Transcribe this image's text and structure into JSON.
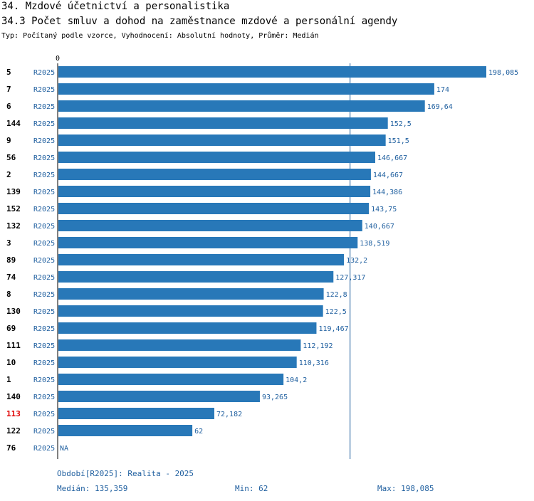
{
  "header": {
    "title": "34. Mzdové účetnictví a personalistika",
    "subtitle": "34.3 Počet smluv a dohod na zaměstnance mzdové a personální agendy",
    "type_line": "Typ: Počítaný podle vzorce, Vyhodnocení: Absolutní hodnoty, Průměr: Medián"
  },
  "chart_data": {
    "type": "bar",
    "orientation": "horizontal",
    "title": "34.3 Počet smluv a dohod na zaměstnance mzdové a personální agendy",
    "axis_zero_label": "0",
    "xlim": [
      0,
      198.085
    ],
    "median": 135.359,
    "colors": {
      "bar": "#2878b8",
      "label": "#1f5f9f",
      "highlight": "#e00000",
      "median_line": "#1f5f9f"
    },
    "rows": [
      {
        "id": "5",
        "period": "R2025",
        "value": 198.085,
        "label": "198,085",
        "highlight": false
      },
      {
        "id": "7",
        "period": "R2025",
        "value": 174,
        "label": "174",
        "highlight": false
      },
      {
        "id": "6",
        "period": "R2025",
        "value": 169.64,
        "label": "169,64",
        "highlight": false
      },
      {
        "id": "144",
        "period": "R2025",
        "value": 152.5,
        "label": "152,5",
        "highlight": false
      },
      {
        "id": "9",
        "period": "R2025",
        "value": 151.5,
        "label": "151,5",
        "highlight": false
      },
      {
        "id": "56",
        "period": "R2025",
        "value": 146.667,
        "label": "146,667",
        "highlight": false
      },
      {
        "id": "2",
        "period": "R2025",
        "value": 144.667,
        "label": "144,667",
        "highlight": false
      },
      {
        "id": "139",
        "period": "R2025",
        "value": 144.386,
        "label": "144,386",
        "highlight": false
      },
      {
        "id": "152",
        "period": "R2025",
        "value": 143.75,
        "label": "143,75",
        "highlight": false
      },
      {
        "id": "132",
        "period": "R2025",
        "value": 140.667,
        "label": "140,667",
        "highlight": false
      },
      {
        "id": "3",
        "period": "R2025",
        "value": 138.519,
        "label": "138,519",
        "highlight": false
      },
      {
        "id": "89",
        "period": "R2025",
        "value": 132.2,
        "label": "132,2",
        "highlight": false
      },
      {
        "id": "74",
        "period": "R2025",
        "value": 127.317,
        "label": "127,317",
        "highlight": false
      },
      {
        "id": "8",
        "period": "R2025",
        "value": 122.8,
        "label": "122,8",
        "highlight": false
      },
      {
        "id": "130",
        "period": "R2025",
        "value": 122.5,
        "label": "122,5",
        "highlight": false
      },
      {
        "id": "69",
        "period": "R2025",
        "value": 119.467,
        "label": "119,467",
        "highlight": false
      },
      {
        "id": "111",
        "period": "R2025",
        "value": 112.192,
        "label": "112,192",
        "highlight": false
      },
      {
        "id": "10",
        "period": "R2025",
        "value": 110.316,
        "label": "110,316",
        "highlight": false
      },
      {
        "id": "1",
        "period": "R2025",
        "value": 104.2,
        "label": "104,2",
        "highlight": false
      },
      {
        "id": "140",
        "period": "R2025",
        "value": 93.265,
        "label": "93,265",
        "highlight": false
      },
      {
        "id": "113",
        "period": "R2025",
        "value": 72.182,
        "label": "72,182",
        "highlight": true
      },
      {
        "id": "122",
        "period": "R2025",
        "value": 62,
        "label": "62",
        "highlight": false
      },
      {
        "id": "76",
        "period": "R2025",
        "value": null,
        "label": "NA",
        "highlight": false
      }
    ]
  },
  "footer": {
    "period_label": "Období[R2025]: Realita - 2025",
    "median_label": "Medián: 135,359",
    "min_label": "Min: 62",
    "max_label": "Max: 198,085"
  }
}
